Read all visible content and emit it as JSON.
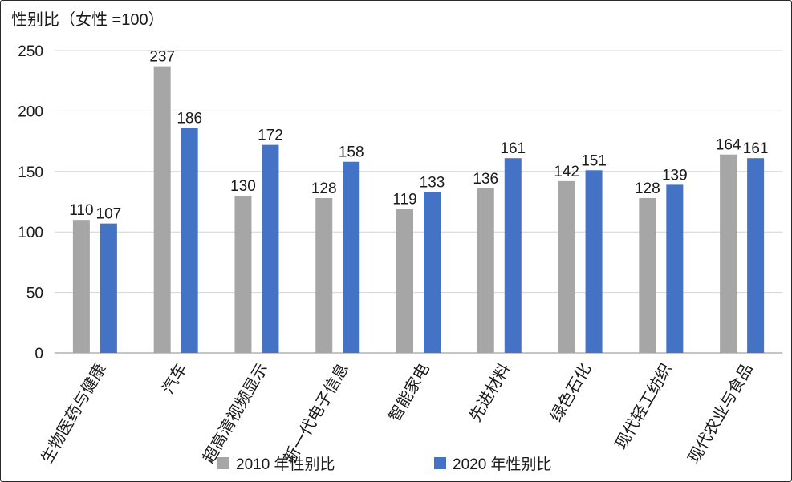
{
  "chart_data": {
    "type": "bar",
    "ylabel": "性别比（女性 =100）",
    "ylim": [
      0,
      250
    ],
    "yticks": [
      0,
      50,
      100,
      150,
      200,
      250
    ],
    "grid": true,
    "legend_position": "bottom",
    "categories": [
      "生物医药与健康",
      "汽车",
      "超高清视频显示",
      "新一代电子信息",
      "智能家电",
      "先进材料",
      "绿色石化",
      "现代轻工纺织",
      "现代农业与食品"
    ],
    "series": [
      {
        "name": "2010 年性别比",
        "color": "#a6a6a6",
        "values": [
          110,
          237,
          130,
          128,
          119,
          136,
          142,
          128,
          164
        ]
      },
      {
        "name": "2020 年性别比",
        "color": "#4472c4",
        "values": [
          107,
          186,
          172,
          158,
          133,
          161,
          151,
          139,
          161
        ]
      }
    ]
  }
}
